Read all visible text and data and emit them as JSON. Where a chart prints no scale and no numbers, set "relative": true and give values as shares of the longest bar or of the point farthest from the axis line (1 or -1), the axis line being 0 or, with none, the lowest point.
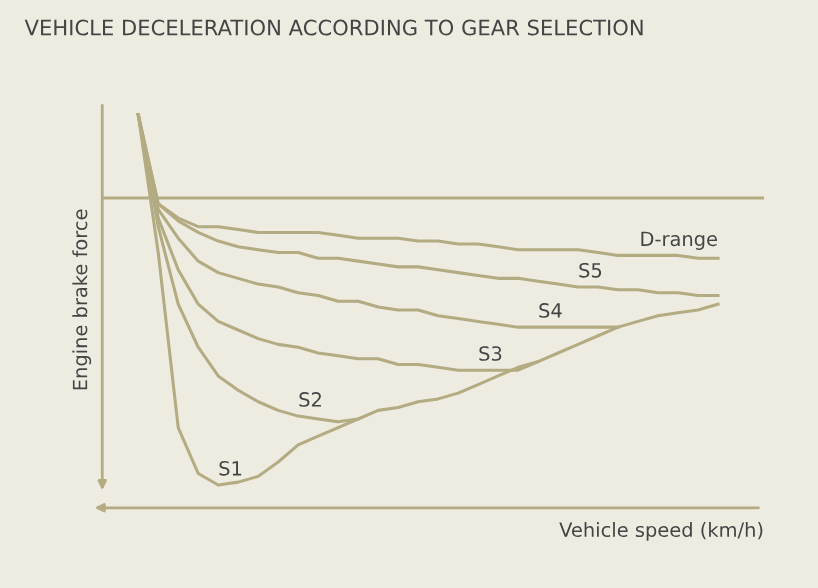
{
  "chart_data": {
    "type": "line",
    "title": "VEHICLE DECELERATION ACCORDING TO GEAR SELECTION",
    "xlabel": "Vehicle speed (km/h)",
    "ylabel": "Engine brake force",
    "relative": true,
    "ref_lines": [
      {
        "axis": "y",
        "value": 0
      }
    ],
    "legend": false,
    "marker": "none",
    "line_style": "solid",
    "categories": [
      null,
      null,
      null,
      null,
      null,
      null,
      null,
      null,
      null,
      null,
      null,
      null,
      null,
      null,
      null,
      null,
      null,
      null,
      null,
      null,
      null,
      null,
      null,
      null,
      null,
      null,
      null,
      null,
      null,
      null
    ],
    "series": [
      {
        "name": "D-range",
        "color": "#b3ab82",
        "values": [
          0.29,
          -0.02,
          -0.07,
          -0.1,
          -0.1,
          -0.11,
          -0.12,
          -0.12,
          -0.12,
          -0.12,
          -0.13,
          -0.14,
          -0.14,
          -0.14,
          -0.15,
          -0.15,
          -0.16,
          -0.16,
          -0.17,
          -0.18,
          -0.18,
          -0.18,
          -0.18,
          -0.19,
          -0.2,
          -0.2,
          -0.2,
          -0.2,
          -0.21,
          -0.21
        ]
      },
      {
        "name": "S5",
        "color": "#b3ab82",
        "values": [
          0.29,
          -0.02,
          -0.08,
          -0.12,
          -0.15,
          -0.17,
          -0.18,
          -0.19,
          -0.19,
          -0.21,
          -0.21,
          -0.22,
          -0.23,
          -0.24,
          -0.24,
          -0.25,
          -0.26,
          -0.27,
          -0.28,
          -0.28,
          -0.29,
          -0.3,
          -0.31,
          -0.31,
          -0.32,
          -0.32,
          -0.33,
          -0.33,
          -0.34,
          -0.34
        ]
      },
      {
        "name": "S4",
        "color": "#b3ab82",
        "values": [
          0.29,
          -0.04,
          -0.14,
          -0.22,
          -0.26,
          -0.28,
          -0.3,
          -0.31,
          -0.33,
          -0.34,
          -0.36,
          -0.36,
          -0.38,
          -0.39,
          -0.39,
          -0.41,
          -0.42,
          -0.43,
          -0.44,
          -0.45,
          -0.45,
          -0.45,
          -0.45,
          -0.45,
          -0.45,
          null,
          null,
          null,
          null,
          null
        ]
      },
      {
        "name": "S3",
        "color": "#b3ab82",
        "values": [
          0.29,
          -0.07,
          -0.25,
          -0.37,
          -0.43,
          -0.46,
          -0.49,
          -0.51,
          -0.52,
          -0.54,
          -0.55,
          -0.56,
          -0.56,
          -0.58,
          -0.58,
          -0.59,
          -0.6,
          -0.6,
          -0.6,
          -0.6,
          -0.57,
          -0.54,
          -0.51,
          -0.48,
          -0.45,
          -0.43,
          -0.41,
          -0.4,
          -0.39,
          -0.37
        ]
      },
      {
        "name": "S2",
        "color": "#b3ab82",
        "values": [
          0.29,
          -0.1,
          -0.37,
          -0.52,
          -0.62,
          -0.67,
          -0.71,
          -0.74,
          -0.76,
          -0.77,
          -0.78,
          -0.77,
          -0.74,
          -0.73,
          -0.71,
          -0.7,
          -0.68,
          -0.65,
          -0.62,
          -0.59,
          -0.57,
          null,
          null,
          null,
          null,
          null,
          null,
          null,
          null,
          null
        ]
      },
      {
        "name": "S1",
        "color": "#b3ab82",
        "values": [
          0.29,
          -0.19,
          -0.8,
          -0.96,
          -1,
          -0.99,
          -0.97,
          -0.92,
          -0.86,
          -0.83,
          -0.8,
          -0.77,
          null,
          null,
          null,
          null,
          null,
          null,
          null,
          null,
          null,
          null,
          null,
          null,
          null,
          null,
          null,
          null,
          null,
          null
        ]
      }
    ]
  }
}
